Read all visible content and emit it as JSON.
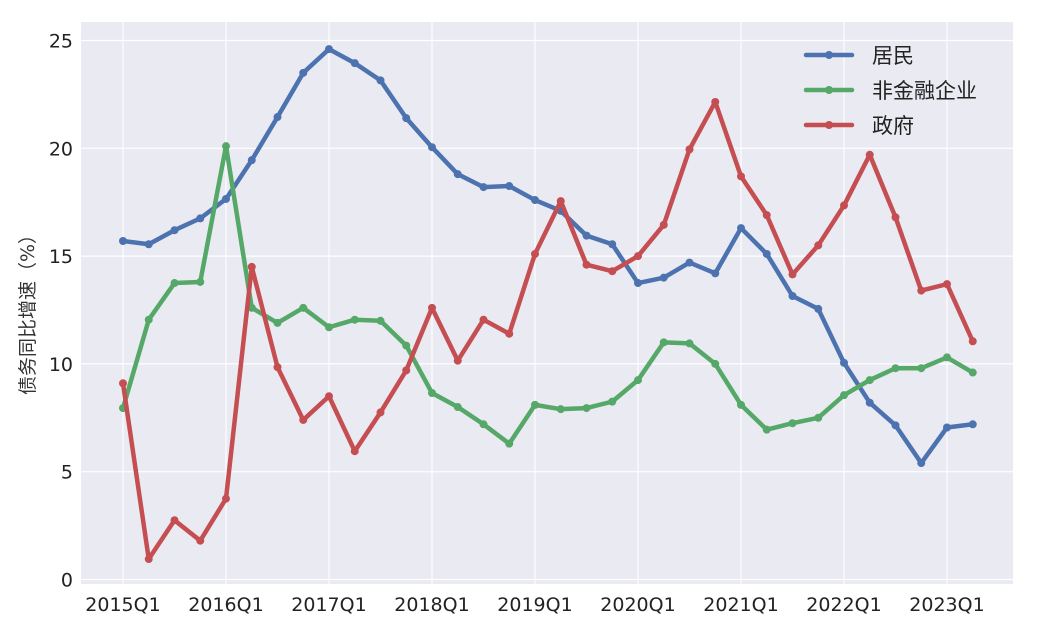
{
  "chart_data": {
    "type": "line",
    "title": "",
    "xlabel": "",
    "ylabel": "债务同比增速（%）",
    "ylim": [
      0,
      25.8
    ],
    "yticks": [
      0,
      5,
      10,
      15,
      20,
      25
    ],
    "grid": true,
    "legend_position": "top-right",
    "x": [
      "2015Q1",
      "2015Q2",
      "2015Q3",
      "2015Q4",
      "2016Q1",
      "2016Q2",
      "2016Q3",
      "2016Q4",
      "2017Q1",
      "2017Q2",
      "2017Q3",
      "2017Q4",
      "2018Q1",
      "2018Q2",
      "2018Q3",
      "2018Q4",
      "2019Q1",
      "2019Q2",
      "2019Q3",
      "2019Q4",
      "2020Q1",
      "2020Q2",
      "2020Q3",
      "2020Q4",
      "2021Q1",
      "2021Q2",
      "2021Q3",
      "2021Q4",
      "2022Q1",
      "2022Q2",
      "2022Q3",
      "2022Q4",
      "2023Q1",
      "2023Q2"
    ],
    "xtick_labels": [
      "2015Q1",
      "2016Q1",
      "2017Q1",
      "2018Q1",
      "2019Q1",
      "2020Q1",
      "2021Q1",
      "2022Q1",
      "2023Q1"
    ],
    "series": [
      {
        "name": "居民",
        "color": "#4c72b0",
        "values": [
          15.7,
          15.55,
          16.2,
          16.75,
          17.65,
          19.45,
          21.45,
          23.5,
          24.6,
          23.95,
          23.15,
          21.4,
          20.05,
          18.8,
          18.2,
          18.25,
          17.6,
          17.1,
          15.95,
          15.55,
          13.75,
          14.0,
          14.7,
          14.2,
          16.3,
          15.1,
          13.15,
          12.55,
          10.05,
          8.2,
          7.15,
          5.4,
          7.05,
          7.2
        ]
      },
      {
        "name": "非金融企业",
        "color": "#55a868",
        "values": [
          7.95,
          12.05,
          13.75,
          13.8,
          20.1,
          12.6,
          11.9,
          12.6,
          11.7,
          12.05,
          12.0,
          10.85,
          8.65,
          8.0,
          7.2,
          6.3,
          8.1,
          7.9,
          7.95,
          8.25,
          9.25,
          11.0,
          10.95,
          10.0,
          8.1,
          6.95,
          7.25,
          7.5,
          8.55,
          9.25,
          9.8,
          9.8,
          10.3,
          9.6
        ]
      },
      {
        "name": "政府",
        "color": "#c44e52",
        "values": [
          9.1,
          0.95,
          2.75,
          1.8,
          3.75,
          14.5,
          9.85,
          7.4,
          8.5,
          5.95,
          7.75,
          9.7,
          12.6,
          10.15,
          12.05,
          11.4,
          15.1,
          17.55,
          14.6,
          14.3,
          15.0,
          16.45,
          19.95,
          22.15,
          18.7,
          16.9,
          14.15,
          15.5,
          17.35,
          19.7,
          16.8,
          13.4,
          13.7,
          11.05
        ]
      }
    ]
  }
}
